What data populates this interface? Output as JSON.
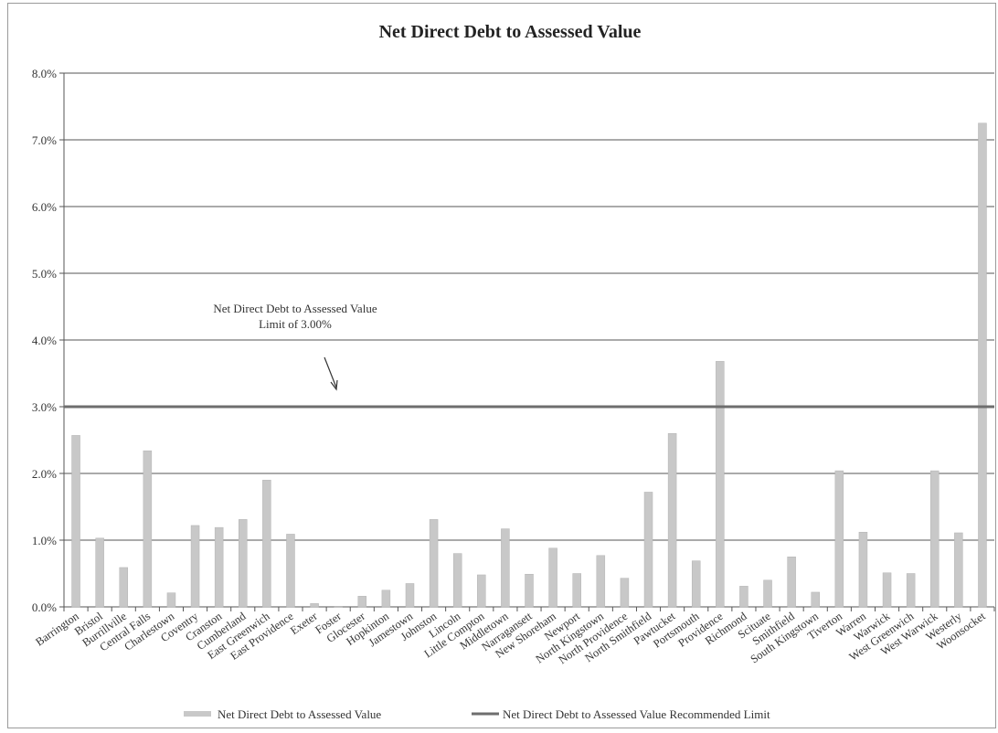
{
  "chart_data": {
    "type": "bar",
    "title": "Net Direct Debt to Assessed Value",
    "xlabel": "",
    "ylabel": "",
    "ylim": [
      0,
      8
    ],
    "yticks": [
      "0.0%",
      "1.0%",
      "2.0%",
      "3.0%",
      "4.0%",
      "5.0%",
      "6.0%",
      "7.0%",
      "8.0%"
    ],
    "grid": true,
    "legend_position": "bottom",
    "categories": [
      "Barrington",
      "Bristol",
      "Burrillville",
      "Central Falls",
      "Charlestown",
      "Coventry",
      "Cranston",
      "Cumberland",
      "East Greenwich",
      "East Providence",
      "Exeter",
      "Foster",
      "Glocester",
      "Hopkinton",
      "Jamestown",
      "Johnston",
      "Lincoln",
      "Little Compton",
      "Middletown",
      "Narragansett",
      "New Shoreham",
      "Newport",
      "North Kingstown",
      "North Providence",
      "North Smithfield",
      "Pawtucket",
      "Portsmouth",
      "Providence",
      "Richmond",
      "Scituate",
      "Smithfield",
      "South Kingstown",
      "Tiverton",
      "Warren",
      "Warwick",
      "West Greenwich",
      "West Warwick",
      "Westerly",
      "Woonsocket"
    ],
    "series": [
      {
        "name": "Net Direct Debt to Assessed Value",
        "kind": "bar",
        "color": "#c8c8c8",
        "values": [
          2.57,
          1.03,
          0.59,
          2.34,
          0.21,
          1.22,
          1.19,
          1.31,
          1.9,
          1.09,
          0.05,
          0.01,
          0.16,
          0.25,
          0.35,
          1.31,
          0.8,
          0.48,
          1.17,
          0.49,
          0.88,
          0.5,
          0.77,
          0.43,
          1.72,
          2.6,
          0.69,
          3.68,
          0.31,
          0.4,
          0.75,
          0.22,
          2.04,
          1.12,
          0.51,
          0.5,
          2.04,
          1.11,
          7.25
        ]
      },
      {
        "name": "Net Direct Debt to Assessed Value Recommended Limit",
        "kind": "line",
        "color": "#6e6e6e",
        "values": [
          3.0,
          3.0,
          3.0,
          3.0,
          3.0,
          3.0,
          3.0,
          3.0,
          3.0,
          3.0,
          3.0,
          3.0,
          3.0,
          3.0,
          3.0,
          3.0,
          3.0,
          3.0,
          3.0,
          3.0,
          3.0,
          3.0,
          3.0,
          3.0,
          3.0,
          3.0,
          3.0,
          3.0,
          3.0,
          3.0,
          3.0,
          3.0,
          3.0,
          3.0,
          3.0,
          3.0,
          3.0,
          3.0,
          3.0
        ]
      }
    ],
    "annotation": {
      "line1": "Net Direct Debt to Assessed Value",
      "line2": "Limit  of 3.00%"
    }
  }
}
